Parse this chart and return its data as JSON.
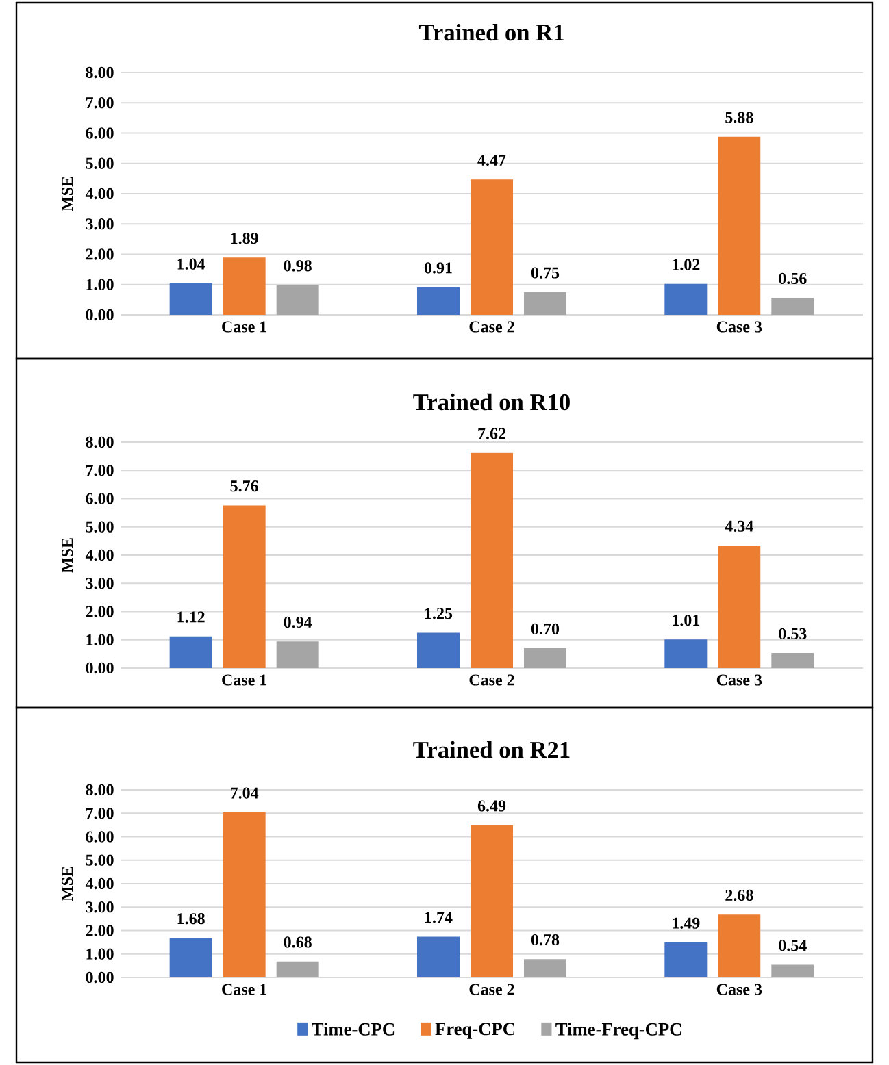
{
  "chart_data": [
    {
      "type": "bar",
      "title": "Trained on R1",
      "ylabel": "MSE",
      "categories": [
        "Case 1",
        "Case 2",
        "Case 3"
      ],
      "series": [
        {
          "color": "#4472c4",
          "values": [
            1.04,
            0.91,
            1.02
          ],
          "value_labels": [
            "1.04",
            "0.91",
            "1.02"
          ]
        },
        {
          "color": "#ed7d31",
          "values": [
            1.89,
            4.47,
            5.88
          ],
          "value_labels": [
            "1.89",
            "4.47",
            "5.88"
          ]
        },
        {
          "color": "#a5a5a5",
          "values": [
            0.98,
            0.75,
            0.56
          ],
          "value_labels": [
            "0.98",
            "0.75",
            "0.56"
          ]
        }
      ],
      "ylim": [
        0,
        8
      ],
      "yticks": [
        {
          "value": 0,
          "label": "0.00"
        },
        {
          "value": 1,
          "label": "1.00"
        },
        {
          "value": 2,
          "label": "2.00"
        },
        {
          "value": 3,
          "label": "3.00"
        },
        {
          "value": 4,
          "label": "4.00"
        },
        {
          "value": 5,
          "label": "5.00"
        },
        {
          "value": 6,
          "label": "6.00"
        },
        {
          "value": 7,
          "label": "7.00"
        },
        {
          "value": 8,
          "label": "8.00"
        }
      ],
      "grid": "y"
    },
    {
      "type": "bar",
      "title": "Trained on R10",
      "ylabel": "MSE",
      "categories": [
        "Case 1",
        "Case 2",
        "Case 3"
      ],
      "series": [
        {
          "color": "#4472c4",
          "values": [
            1.12,
            1.25,
            1.01
          ],
          "value_labels": [
            "1.12",
            "1.25",
            "1.01"
          ]
        },
        {
          "color": "#ed7d31",
          "values": [
            5.76,
            7.62,
            4.34
          ],
          "value_labels": [
            "5.76",
            "7.62",
            "4.34"
          ]
        },
        {
          "color": "#a5a5a5",
          "values": [
            0.94,
            0.7,
            0.53
          ],
          "value_labels": [
            "0.94",
            "0.70",
            "0.53"
          ]
        }
      ],
      "ylim": [
        0,
        8
      ],
      "yticks": [
        {
          "value": 0,
          "label": "0.00"
        },
        {
          "value": 1,
          "label": "1.00"
        },
        {
          "value": 2,
          "label": "2.00"
        },
        {
          "value": 3,
          "label": "3.00"
        },
        {
          "value": 4,
          "label": "4.00"
        },
        {
          "value": 5,
          "label": "5.00"
        },
        {
          "value": 6,
          "label": "6.00"
        },
        {
          "value": 7,
          "label": "7.00"
        },
        {
          "value": 8,
          "label": "8.00"
        }
      ],
      "grid": "y"
    },
    {
      "type": "bar",
      "title": "Trained on R21",
      "ylabel": "MSE",
      "categories": [
        "Case 1",
        "Case 2",
        "Case 3"
      ],
      "series": [
        {
          "name": "Time-CPC",
          "color": "#4472c4",
          "values": [
            1.68,
            1.74,
            1.49
          ],
          "value_labels": [
            "1.68",
            "1.74",
            "1.49"
          ]
        },
        {
          "name": "Freq-CPC",
          "color": "#ed7d31",
          "values": [
            7.04,
            6.49,
            2.68
          ],
          "value_labels": [
            "7.04",
            "6.49",
            "2.68"
          ]
        },
        {
          "name": "Time-Freq-CPC",
          "color": "#a5a5a5",
          "values": [
            0.68,
            0.78,
            0.54
          ],
          "value_labels": [
            "0.68",
            "0.78",
            "0.54"
          ]
        }
      ],
      "ylim": [
        0,
        8
      ],
      "yticks": [
        {
          "value": 0,
          "label": "0.00"
        },
        {
          "value": 1,
          "label": "1.00"
        },
        {
          "value": 2,
          "label": "2.00"
        },
        {
          "value": 3,
          "label": "3.00"
        },
        {
          "value": 4,
          "label": "4.00"
        },
        {
          "value": 5,
          "label": "5.00"
        },
        {
          "value": 6,
          "label": "6.00"
        },
        {
          "value": 7,
          "label": "7.00"
        },
        {
          "value": 8,
          "label": "8.00"
        }
      ],
      "grid": "y",
      "legend": "bottom"
    }
  ]
}
